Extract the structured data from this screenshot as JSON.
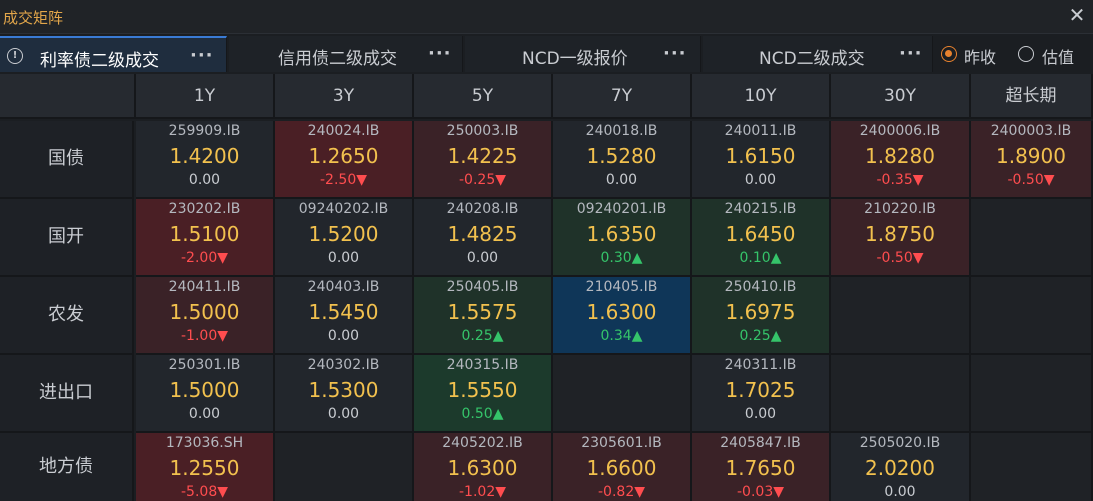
{
  "window": {
    "title": "成交矩阵"
  },
  "tabs": [
    {
      "label": "利率债二级成交",
      "active": true
    },
    {
      "label": "信用债二级成交",
      "active": false
    },
    {
      "label": "NCD一级报价",
      "active": false
    },
    {
      "label": "NCD二级成交",
      "active": false
    }
  ],
  "tab_more": "···",
  "radios": [
    {
      "label": "昨收",
      "checked": true
    },
    {
      "label": "估值",
      "checked": false
    }
  ],
  "columns": [
    "1Y",
    "3Y",
    "5Y",
    "7Y",
    "10Y",
    "30Y",
    "超长期"
  ],
  "rows": [
    {
      "label": "国债",
      "cells": [
        {
          "code": "259909.IB",
          "price": "1.4200",
          "change": "0.00",
          "dir": "zero",
          "bg": "neutral"
        },
        {
          "code": "240024.IB",
          "price": "1.2650",
          "change": "-2.50▼",
          "dir": "neg",
          "bg": "down-strong"
        },
        {
          "code": "250003.IB",
          "price": "1.4225",
          "change": "-0.25▼",
          "dir": "neg",
          "bg": "down"
        },
        {
          "code": "240018.IB",
          "price": "1.5280",
          "change": "0.00",
          "dir": "zero",
          "bg": "neutral"
        },
        {
          "code": "240011.IB",
          "price": "1.6150",
          "change": "0.00",
          "dir": "zero",
          "bg": "neutral"
        },
        {
          "code": "2400006.IB",
          "price": "1.8280",
          "change": "-0.35▼",
          "dir": "neg",
          "bg": "down"
        },
        {
          "code": "2400003.IB",
          "price": "1.8900",
          "change": "-0.50▼",
          "dir": "neg",
          "bg": "down"
        }
      ]
    },
    {
      "label": "国开",
      "cells": [
        {
          "code": "230202.IB",
          "price": "1.5100",
          "change": "-2.00▼",
          "dir": "neg",
          "bg": "down-strong"
        },
        {
          "code": "09240202.IB",
          "price": "1.5200",
          "change": "0.00",
          "dir": "zero",
          "bg": "neutral"
        },
        {
          "code": "240208.IB",
          "price": "1.4825",
          "change": "0.00",
          "dir": "zero",
          "bg": "neutral"
        },
        {
          "code": "09240201.IB",
          "price": "1.6350",
          "change": "0.30▲",
          "dir": "pos",
          "bg": "up"
        },
        {
          "code": "240215.IB",
          "price": "1.6450",
          "change": "0.10▲",
          "dir": "pos",
          "bg": "up"
        },
        {
          "code": "210220.IB",
          "price": "1.8750",
          "change": "-0.50▼",
          "dir": "neg",
          "bg": "down"
        },
        null
      ]
    },
    {
      "label": "农发",
      "cells": [
        {
          "code": "240411.IB",
          "price": "1.5000",
          "change": "-1.00▼",
          "dir": "neg",
          "bg": "down"
        },
        {
          "code": "240403.IB",
          "price": "1.5450",
          "change": "0.00",
          "dir": "zero",
          "bg": "neutral"
        },
        {
          "code": "250405.IB",
          "price": "1.5575",
          "change": "0.25▲",
          "dir": "pos",
          "bg": "up"
        },
        {
          "code": "210405.IB",
          "price": "1.6300",
          "change": "0.34▲",
          "dir": "pos",
          "bg": "hi"
        },
        {
          "code": "250410.IB",
          "price": "1.6975",
          "change": "0.25▲",
          "dir": "pos",
          "bg": "up"
        },
        null,
        null
      ]
    },
    {
      "label": "进出口",
      "cells": [
        {
          "code": "250301.IB",
          "price": "1.5000",
          "change": "0.00",
          "dir": "zero",
          "bg": "neutral"
        },
        {
          "code": "240302.IB",
          "price": "1.5300",
          "change": "0.00",
          "dir": "zero",
          "bg": "neutral"
        },
        {
          "code": "240315.IB",
          "price": "1.5550",
          "change": "0.50▲",
          "dir": "pos",
          "bg": "up-strong"
        },
        null,
        {
          "code": "240311.IB",
          "price": "1.7025",
          "change": "0.00",
          "dir": "zero",
          "bg": "neutral"
        },
        null,
        null
      ]
    },
    {
      "label": "地方债",
      "cells": [
        {
          "code": "173036.SH",
          "price": "1.2550",
          "change": "-5.08▼",
          "dir": "neg",
          "bg": "down-strong"
        },
        null,
        {
          "code": "2405202.IB",
          "price": "1.6300",
          "change": "-1.02▼",
          "dir": "neg",
          "bg": "down"
        },
        {
          "code": "2305601.IB",
          "price": "1.6600",
          "change": "-0.82▼",
          "dir": "neg",
          "bg": "down"
        },
        {
          "code": "2405847.IB",
          "price": "1.7650",
          "change": "-0.03▼",
          "dir": "neg",
          "bg": "down"
        },
        {
          "code": "2505020.IB",
          "price": "2.0200",
          "change": "0.00",
          "dir": "zero",
          "bg": "neutral"
        },
        null
      ]
    }
  ]
}
